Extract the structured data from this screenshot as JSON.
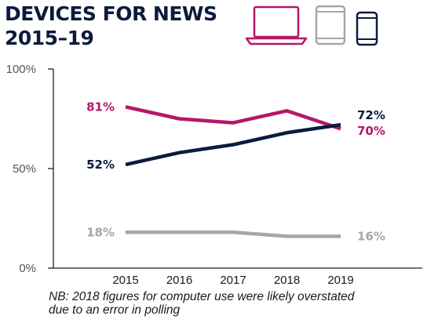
{
  "header": {
    "title_line1": "DEVICES FOR NEWS",
    "title_line2": "2015–19"
  },
  "device_icons": [
    {
      "name": "laptop-icon",
      "color": "#b5176a"
    },
    {
      "name": "tablet-icon",
      "color": "#a6a6a6"
    },
    {
      "name": "smartphone-icon",
      "color": "#0c1a3e"
    }
  ],
  "chart_data": {
    "type": "line",
    "title": "DEVICES FOR NEWS 2015–19",
    "x": [
      "2015",
      "2016",
      "2017",
      "2018",
      "2019"
    ],
    "ylim": [
      0,
      100
    ],
    "y_ticks": [
      "0%",
      "50%",
      "100%"
    ],
    "y_tick_values": [
      0,
      50,
      100
    ],
    "grid": false,
    "series": [
      {
        "device": "computer",
        "color": "#b5176a",
        "values": [
          81,
          75,
          73,
          79,
          70
        ],
        "start_label": "81%",
        "end_label": "70%"
      },
      {
        "device": "smartphone",
        "color": "#0c1a3e",
        "values": [
          52,
          58,
          62,
          68,
          72
        ],
        "start_label": "52%",
        "end_label": "72%"
      },
      {
        "device": "tablet",
        "color": "#a6a6a6",
        "values": [
          18,
          18,
          18,
          16,
          16
        ],
        "start_label": "18%",
        "end_label": "16%"
      }
    ]
  },
  "note": {
    "line1": "NB: 2018 figures for computer use were likely overstated",
    "line2": "due to an error in polling"
  }
}
